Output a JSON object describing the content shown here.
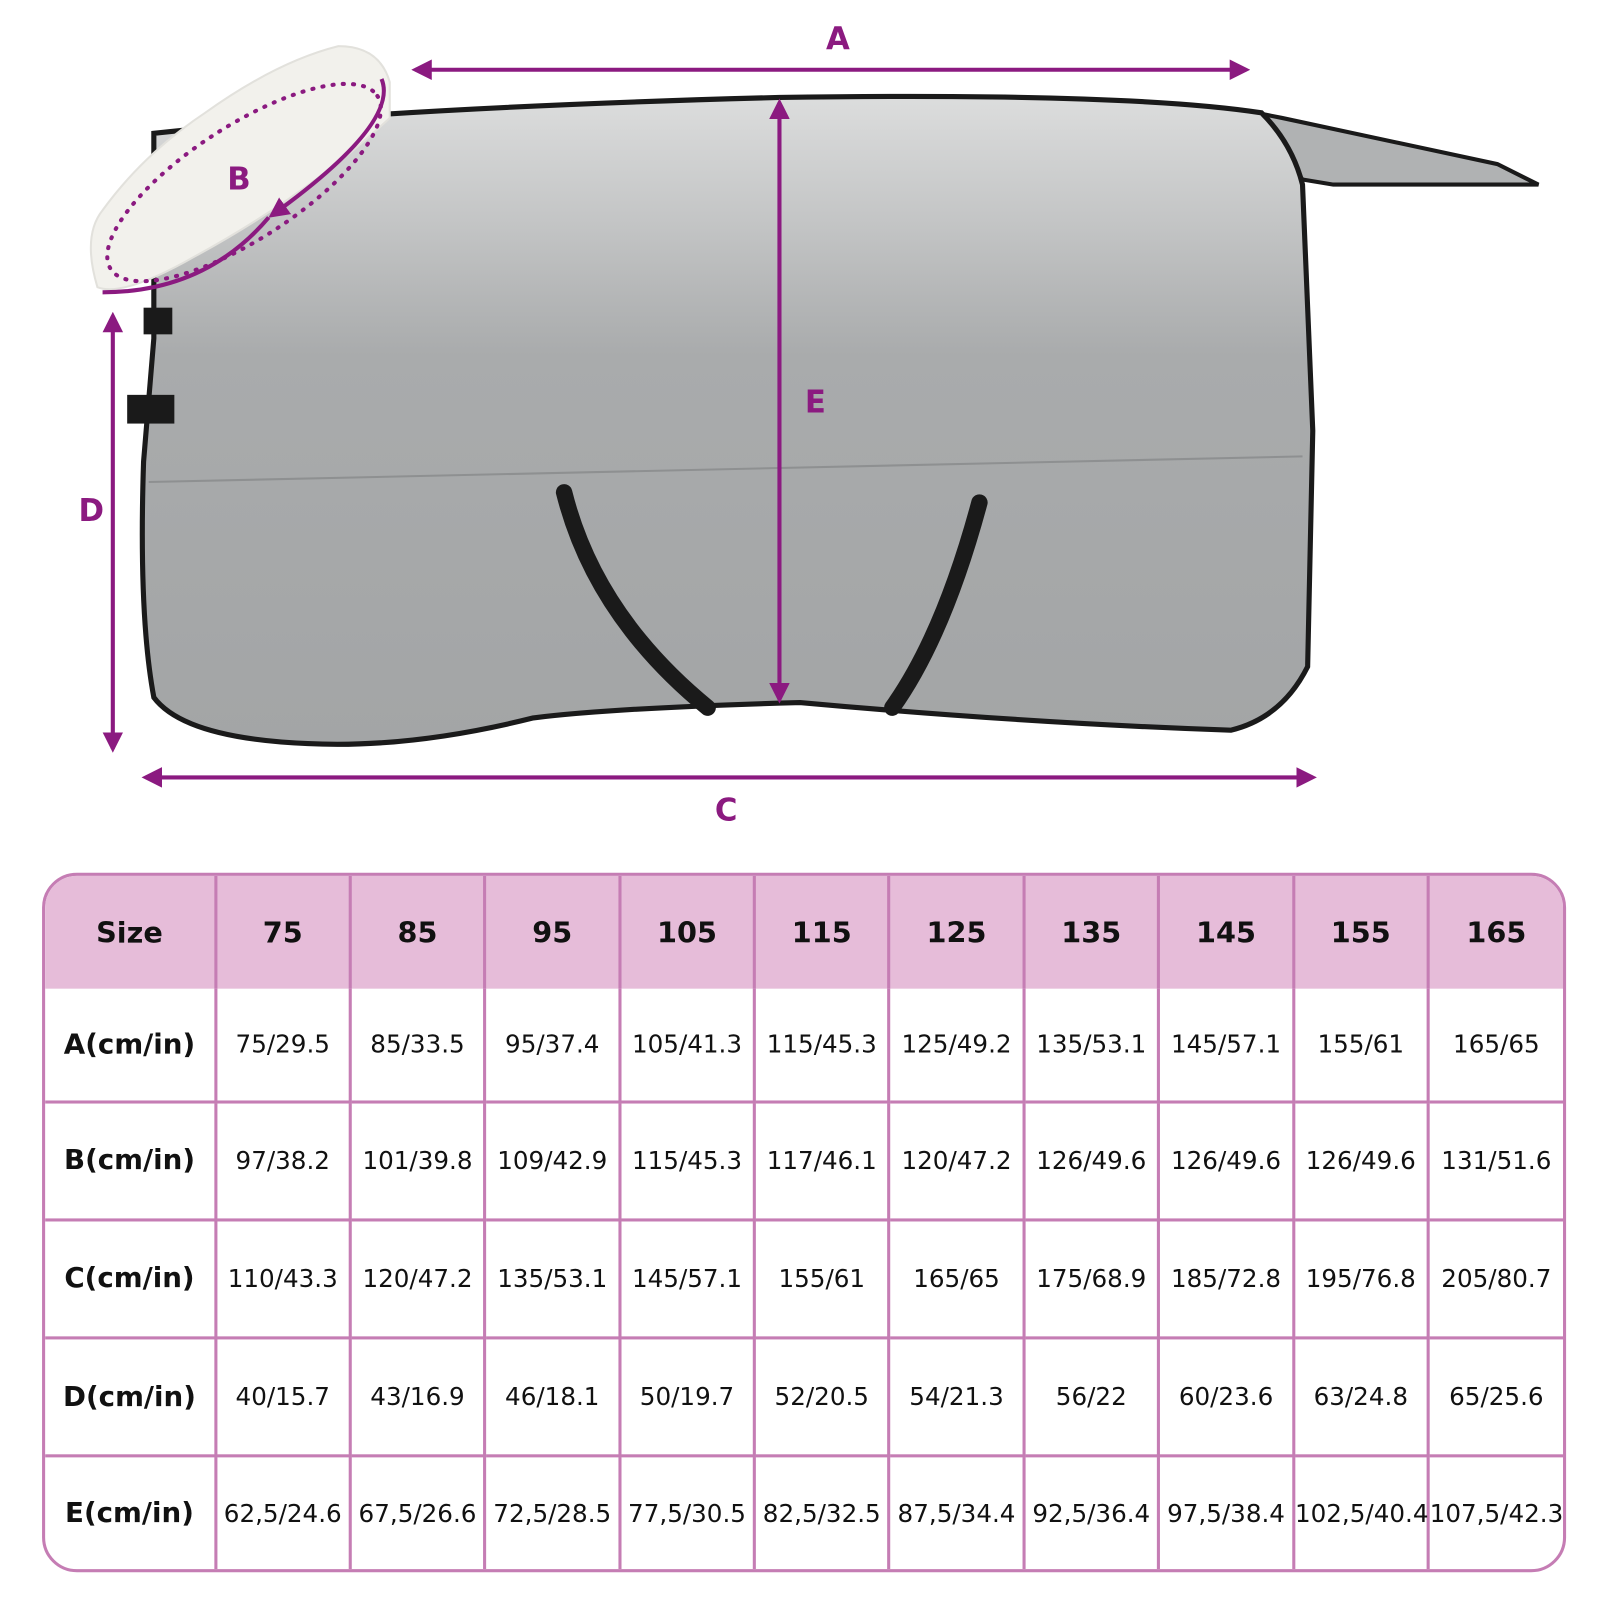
{
  "colors": {
    "accent": "#8b1a80",
    "table_border": "#c57db4",
    "header_fill": "#e6bcd9",
    "blanket": "#a8aaab",
    "trim": "#1a1a1a",
    "collar": "#f2f1ec"
  },
  "diagram": {
    "labels": {
      "a": "A",
      "b": "B",
      "c": "C",
      "d": "D",
      "e": "E"
    }
  },
  "table": {
    "header": [
      "Size",
      "75",
      "85",
      "95",
      "105",
      "115",
      "125",
      "135",
      "145",
      "155",
      "165"
    ],
    "rows": [
      {
        "label": "A(cm/in)",
        "values": [
          "75/29.5",
          "85/33.5",
          "95/37.4",
          "105/41.3",
          "115/45.3",
          "125/49.2",
          "135/53.1",
          "145/57.1",
          "155/61",
          "165/65"
        ]
      },
      {
        "label": "B(cm/in)",
        "values": [
          "97/38.2",
          "101/39.8",
          "109/42.9",
          "115/45.3",
          "117/46.1",
          "120/47.2",
          "126/49.6",
          "126/49.6",
          "126/49.6",
          "131/51.6"
        ]
      },
      {
        "label": "C(cm/in)",
        "values": [
          "110/43.3",
          "120/47.2",
          "135/53.1",
          "145/57.1",
          "155/61",
          "165/65",
          "175/68.9",
          "185/72.8",
          "195/76.8",
          "205/80.7"
        ]
      },
      {
        "label": "D(cm/in)",
        "values": [
          "40/15.7",
          "43/16.9",
          "46/18.1",
          "50/19.7",
          "52/20.5",
          "54/21.3",
          "56/22",
          "60/23.6",
          "63/24.8",
          "65/25.6"
        ]
      },
      {
        "label": "E(cm/in)",
        "values": [
          "62,5/24.6",
          "67,5/26.6",
          "72,5/28.5",
          "77,5/30.5",
          "82,5/32.5",
          "87,5/34.4",
          "92,5/36.4",
          "97,5/38.4",
          "102,5/40.4",
          "107,5/42.3"
        ]
      }
    ]
  }
}
